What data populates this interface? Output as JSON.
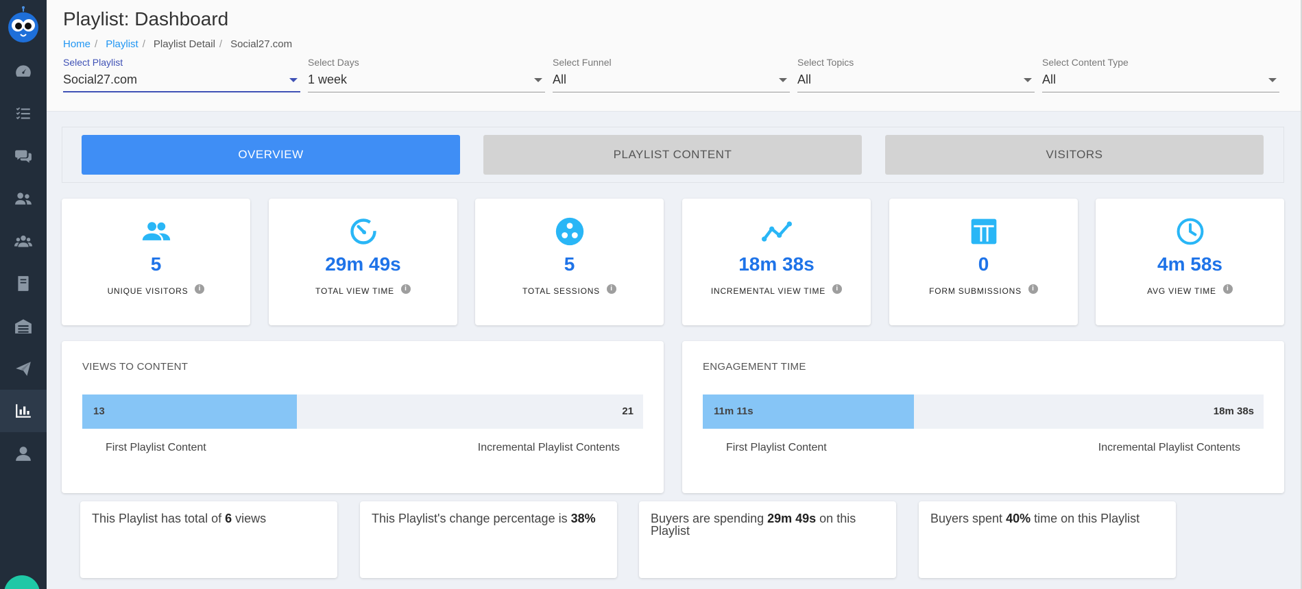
{
  "header": {
    "title": "Playlist: Dashboard",
    "breadcrumb": [
      "Home",
      "Playlist",
      "Playlist Detail",
      "Social27.com"
    ]
  },
  "filters": [
    {
      "label": "Select Playlist",
      "value": "Social27.com"
    },
    {
      "label": "Select Days",
      "value": "1 week"
    },
    {
      "label": "Select Funnel",
      "value": "All"
    },
    {
      "label": "Select Topics",
      "value": "All"
    },
    {
      "label": "Select Content Type",
      "value": "All"
    }
  ],
  "tabs": [
    {
      "label": "OVERVIEW",
      "active": true
    },
    {
      "label": "PLAYLIST CONTENT",
      "active": false
    },
    {
      "label": "VISITORS",
      "active": false
    }
  ],
  "stats": [
    {
      "icon": "users-icon",
      "value": "5",
      "label": "UNIQUE VISITORS"
    },
    {
      "icon": "timer-icon",
      "value": "29m 49s",
      "label": "TOTAL VIEW TIME"
    },
    {
      "icon": "sessions-icon",
      "value": "5",
      "label": "TOTAL SESSIONS"
    },
    {
      "icon": "trend-line-icon",
      "value": "18m 38s",
      "label": "INCREMENTAL VIEW TIME"
    },
    {
      "icon": "form-icon",
      "value": "0",
      "label": "FORM SUBMISSIONS"
    },
    {
      "icon": "clock-icon",
      "value": "4m 58s",
      "label": "AVG VIEW TIME"
    }
  ],
  "views_panel": {
    "title": "VIEWS TO CONTENT",
    "first_value": "13",
    "total_value": "21",
    "fill_fraction": 0.383,
    "left_caption": "First Playlist Content",
    "right_caption": "Incremental Playlist Contents"
  },
  "engagement_panel": {
    "title": "ENGAGEMENT TIME",
    "first_value": "11m 11s",
    "total_value": "18m 38s",
    "fill_fraction": 0.376,
    "left_caption": "First Playlist Content",
    "right_caption": "Incremental Playlist Contents"
  },
  "insights": [
    {
      "pre": "This Playlist has total of ",
      "bold": "6",
      "post": " views"
    },
    {
      "pre": "This Playlist's change percentage is ",
      "bold": "38%",
      "post": ""
    },
    {
      "pre": "Buyers are spending ",
      "bold": "29m 49s",
      "post": " on this Playlist"
    },
    {
      "pre": "Buyers spent ",
      "bold": "40%",
      "post": " time on this Playlist"
    }
  ],
  "colors": {
    "sidebar": "#222d3a",
    "accent": "#3f8ef5",
    "stat_value": "#1e73e8",
    "icon": "#29b6f6",
    "bar_fill": "#86c5f6"
  }
}
